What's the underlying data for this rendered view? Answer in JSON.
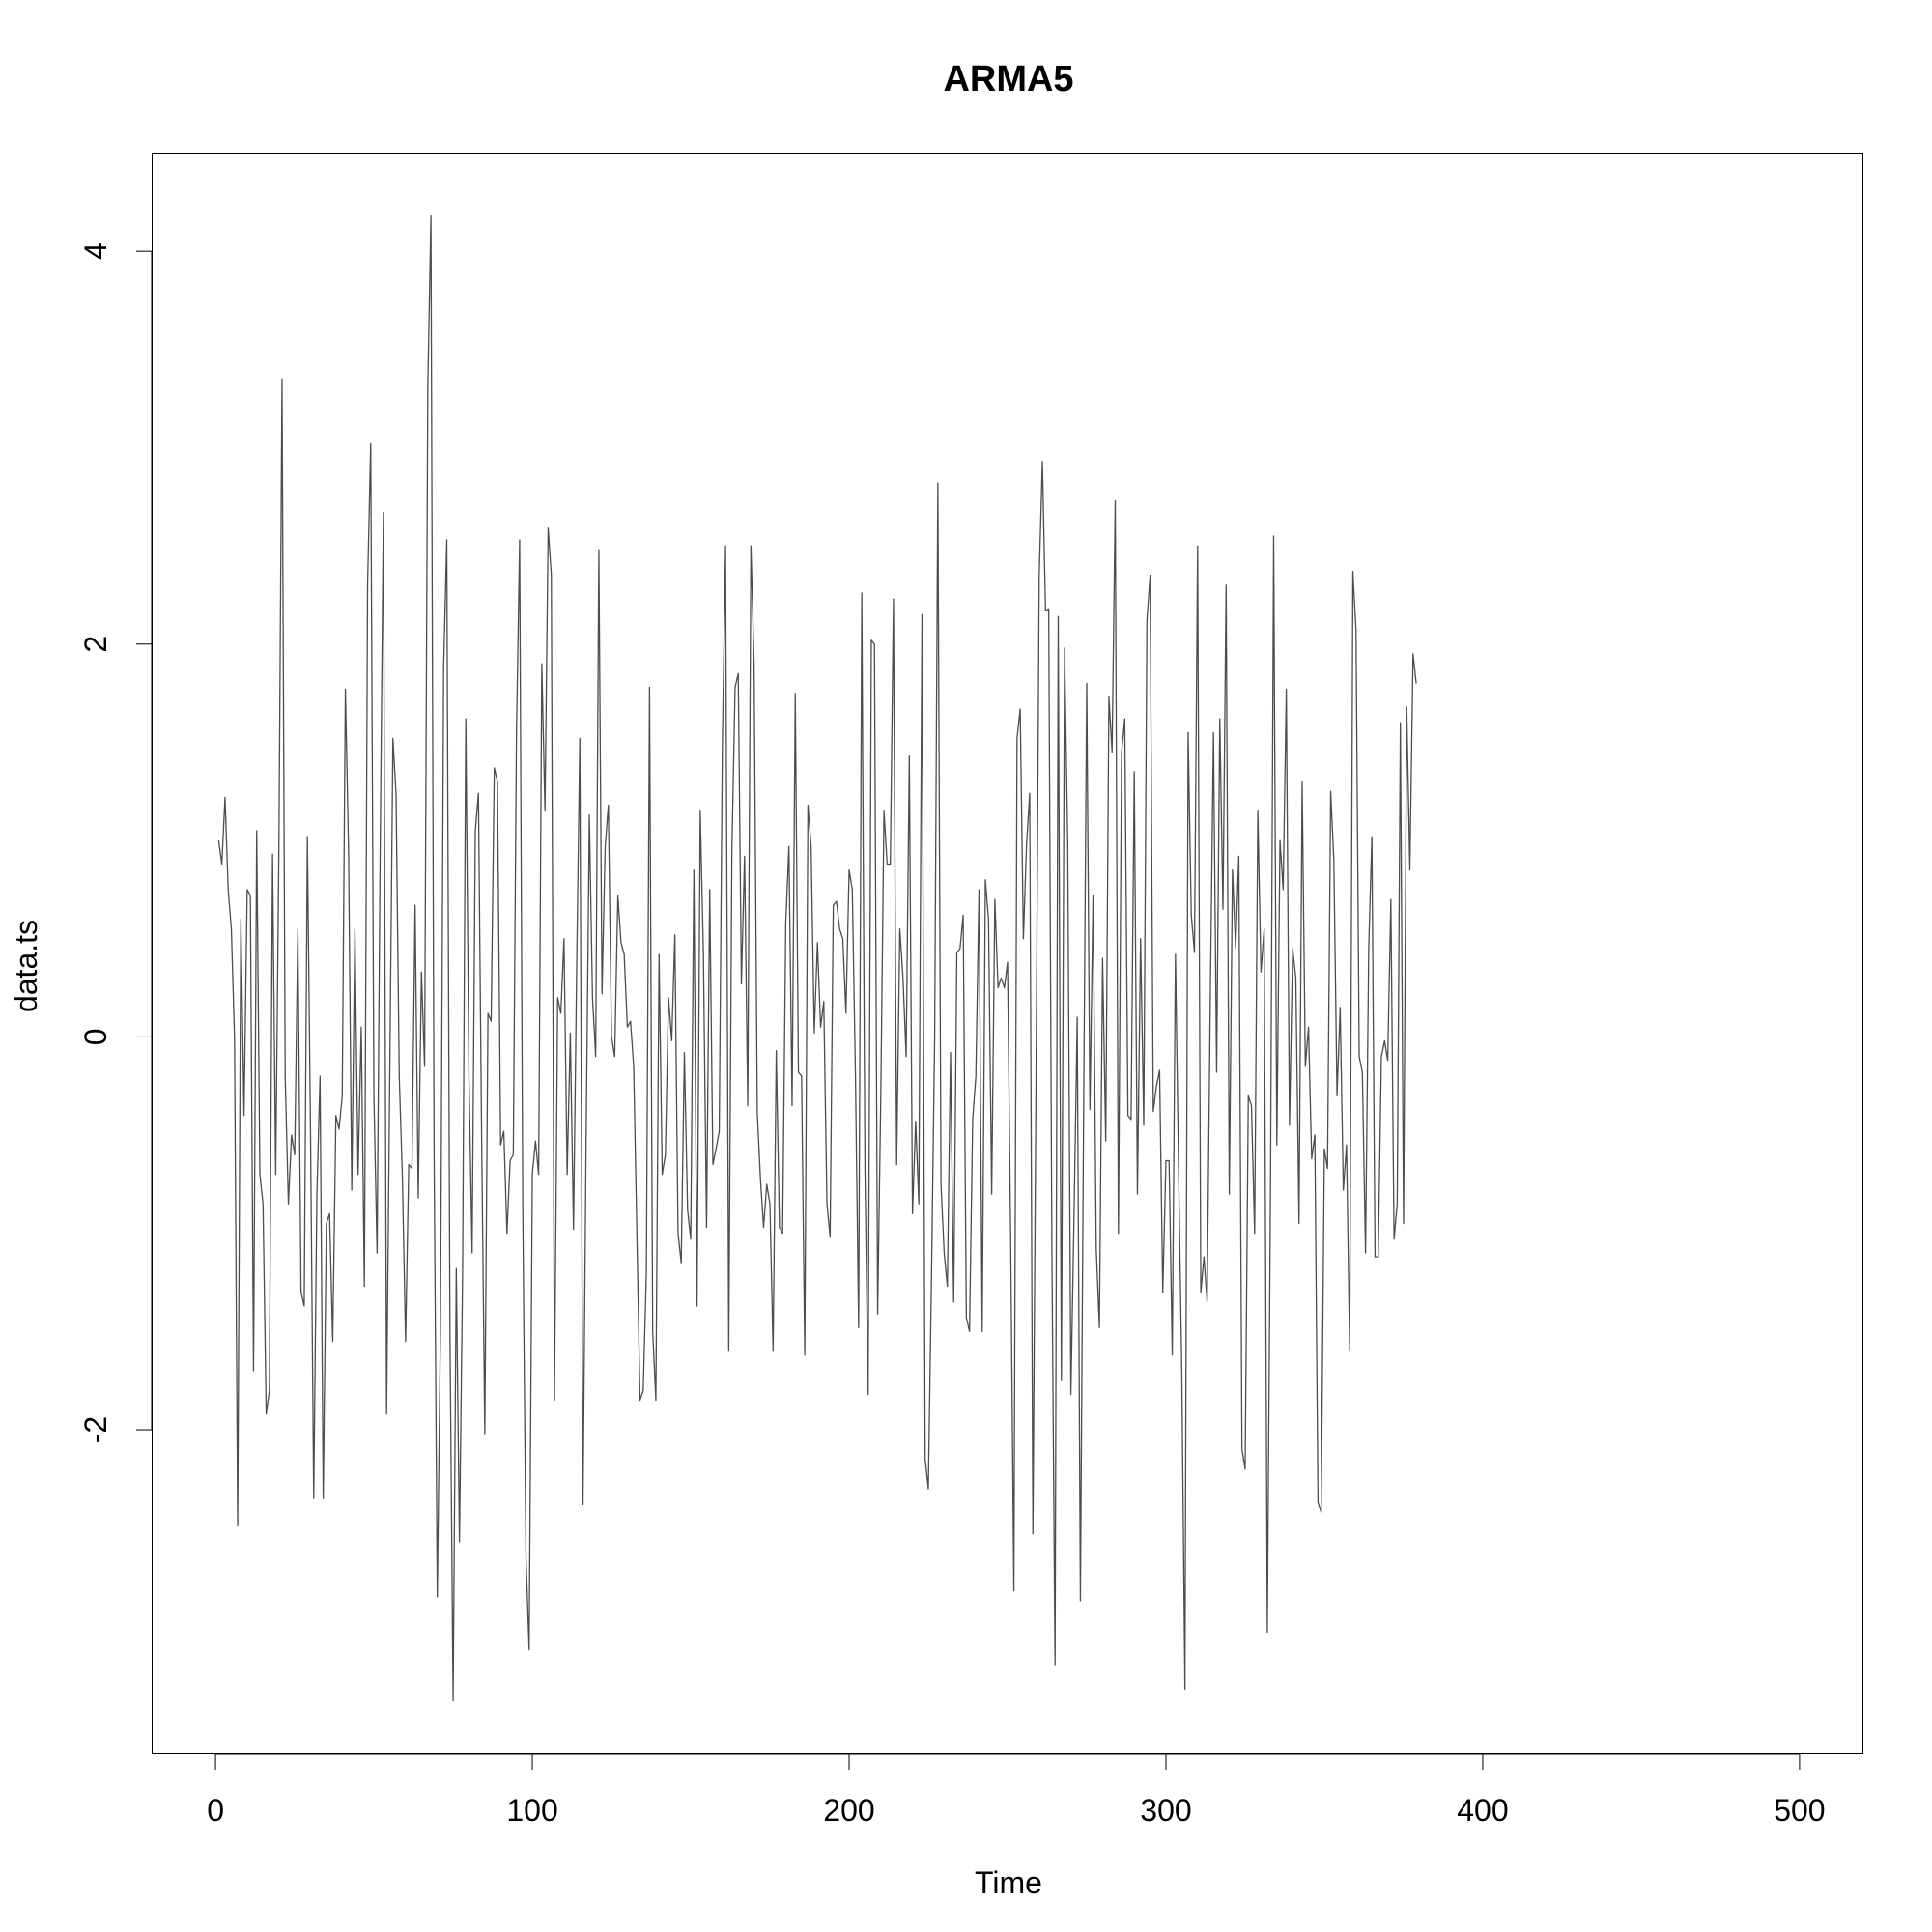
{
  "chart_data": {
    "type": "line",
    "title": "ARMA5",
    "xlabel": "Time",
    "ylabel": "data.ts",
    "xlim": [
      -20,
      520
    ],
    "ylim": [
      -3.65,
      4.5
    ],
    "xticks": [
      0,
      100,
      200,
      300,
      400,
      500
    ],
    "xtick_labels": [
      "0",
      "100",
      "200",
      "300",
      "400",
      "500"
    ],
    "yticks": [
      -2,
      0,
      2,
      4
    ],
    "ytick_labels": [
      "-2",
      "0",
      "2",
      "4"
    ],
    "grid": false,
    "line_color": "#4d4d4d",
    "series": [
      {
        "x_start": 1,
        "x_step": 1,
        "values": [
          1.0,
          0.88,
          1.22,
          0.75,
          0.55,
          0.0,
          -2.49,
          0.6,
          -0.4,
          0.75,
          0.72,
          -1.7,
          1.05,
          -0.7,
          -0.85,
          -1.92,
          -1.8,
          0.93,
          -0.7,
          0.95,
          3.35,
          -0.2,
          -0.85,
          -0.5,
          -0.6,
          0.55,
          -1.3,
          -1.37,
          1.02,
          -0.5,
          -2.35,
          -0.8,
          -0.2,
          -2.35,
          -0.95,
          -0.9,
          -1.55,
          -0.4,
          -0.47,
          -0.3,
          1.77,
          0.95,
          -0.78,
          0.55,
          -0.7,
          0.05,
          -1.27,
          2.3,
          3.02,
          -0.3,
          -1.1,
          1.0,
          2.67,
          -1.92,
          -0.2,
          1.52,
          1.23,
          -0.2,
          -0.72,
          -1.55,
          -0.65,
          -0.67,
          0.67,
          -0.82,
          0.33,
          -0.15,
          3.3,
          4.18,
          -0.6,
          -2.85,
          -1.5,
          1.88,
          2.53,
          -1.5,
          -3.38,
          -1.18,
          -2.57,
          -1.2,
          1.62,
          -0.2,
          -1.1,
          1.05,
          1.24,
          -0.5,
          -2.02,
          0.12,
          0.08,
          1.37,
          1.3,
          -0.55,
          -0.48,
          -1.0,
          -0.63,
          -0.6,
          1.55,
          2.53,
          -0.9,
          -2.65,
          -3.12,
          -0.7,
          -0.53,
          -0.7,
          1.9,
          1.15,
          2.59,
          2.35,
          -1.85,
          0.2,
          0.12,
          0.5,
          -0.7,
          0.02,
          -0.98,
          0.35,
          1.52,
          -2.38,
          -0.5,
          1.13,
          0.2,
          -0.1,
          2.48,
          0.22,
          0.97,
          1.18,
          0.0,
          -0.1,
          0.72,
          0.48,
          0.42,
          0.05,
          0.08,
          -0.15,
          -1.0,
          -1.85,
          -1.8,
          -1.2,
          1.78,
          -1.5,
          -1.85,
          0.42,
          -0.7,
          -0.6,
          0.2,
          -0.02,
          0.52,
          -1.0,
          -1.15,
          -0.08,
          -0.88,
          -1.03,
          0.85,
          -1.37,
          1.15,
          0.43,
          -0.97,
          0.75,
          -0.65,
          -0.57,
          -0.48,
          1.5,
          2.5,
          -1.6,
          0.95,
          1.78,
          1.85,
          0.27,
          0.92,
          -0.35,
          2.5,
          1.9,
          -0.38,
          -0.72,
          -0.97,
          -0.75,
          -0.85,
          -1.6,
          -0.07,
          -0.97,
          -1.0,
          0.58,
          0.97,
          -0.35,
          1.75,
          -0.18,
          -0.2,
          -1.62,
          1.18,
          0.97,
          0.02,
          0.48,
          0.05,
          0.18,
          -0.85,
          -1.02,
          0.67,
          0.69,
          0.55,
          0.5,
          0.12,
          0.85,
          0.75,
          -0.2,
          -1.48,
          2.26,
          -0.68,
          -1.82,
          2.02,
          2.0,
          -1.41,
          -0.3,
          1.15,
          0.88,
          0.88,
          2.23,
          -0.65,
          0.55,
          0.3,
          -0.1,
          1.43,
          -0.9,
          -0.43,
          -0.85,
          2.15,
          -2.15,
          -2.3,
          -1.22,
          0.0,
          2.82,
          -0.75,
          -1.1,
          -1.27,
          -0.08,
          -1.35,
          0.43,
          0.45,
          0.62,
          -1.43,
          -1.5,
          -0.42,
          -0.2,
          0.75,
          -1.5,
          0.8,
          0.6,
          -0.8,
          0.7,
          0.25,
          0.3,
          0.25,
          0.38,
          -1.05,
          -2.82,
          1.52,
          1.67,
          0.5,
          0.98,
          1.24,
          -2.53,
          -0.2,
          2.35,
          2.93,
          2.17,
          2.18,
          -1.07,
          -3.2,
          2.14,
          -1.75,
          1.98,
          1.0,
          -1.82,
          -0.9,
          0.1,
          -2.87,
          -0.43,
          1.8,
          -0.37,
          0.72,
          -1.08,
          -1.48,
          0.4,
          -0.53,
          1.73,
          1.45,
          2.73,
          -1.0,
          1.45,
          1.62,
          -0.4,
          -0.42,
          1.35,
          -0.8,
          0.5,
          -0.45,
          2.12,
          2.35,
          -0.38,
          -0.25,
          -0.17,
          -1.3,
          -0.63,
          -0.63,
          -1.62,
          0.42,
          -0.68,
          -1.7,
          -3.32,
          1.55,
          0.62,
          0.43,
          2.5,
          -1.3,
          -1.12,
          -1.35,
          0.2,
          1.55,
          -0.18,
          1.62,
          0.65,
          2.3,
          -0.8,
          0.85,
          0.45,
          0.92,
          -2.1,
          -2.2,
          -0.3,
          -0.35,
          -1.0,
          1.15,
          0.33,
          0.55,
          -3.03,
          -0.78,
          2.55,
          -0.55,
          1.0,
          0.75,
          1.77,
          -0.45,
          0.45,
          0.3,
          -0.95,
          1.3,
          -0.15,
          0.05,
          -0.62,
          -0.5,
          -2.37,
          -2.42,
          -0.57,
          -0.67,
          1.25,
          0.9,
          -0.3,
          0.15,
          -0.78,
          -0.55,
          -1.6,
          2.37,
          2.07,
          -0.1,
          -0.18,
          -1.1,
          0.45,
          1.02,
          -1.12,
          -1.12,
          -0.1,
          -0.02,
          -0.12,
          0.7,
          -1.03,
          -0.85,
          1.6,
          -0.95,
          1.68,
          0.85,
          1.95,
          1.8
        ]
      }
    ]
  }
}
